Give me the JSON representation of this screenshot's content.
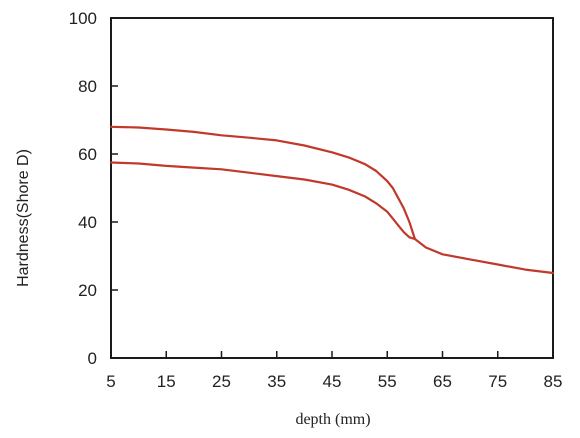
{
  "chart_data": {
    "type": "line",
    "title": "",
    "xlabel": "depth (mm)",
    "ylabel": "Hardness(Shore D)",
    "xlim": [
      5,
      85
    ],
    "ylim": [
      0,
      100
    ],
    "xticks": [
      5,
      15,
      25,
      35,
      45,
      55,
      65,
      75,
      85
    ],
    "yticks": [
      0,
      20,
      40,
      60,
      80,
      100
    ],
    "grid": false,
    "legend": "none",
    "series_color": "#c0392b",
    "series": [
      {
        "x": [
          5,
          10,
          15,
          20,
          25,
          30,
          35,
          40,
          45,
          48,
          51,
          53,
          55,
          56,
          57,
          58,
          59,
          60,
          62,
          65,
          70,
          75,
          80,
          85
        ],
        "y": [
          68,
          67.8,
          67.2,
          66.5,
          65.5,
          64.8,
          64,
          62.5,
          60.5,
          59,
          57,
          55,
          52,
          50,
          47,
          44,
          40,
          35,
          32.5,
          30.5,
          29,
          27.5,
          26,
          25
        ]
      },
      {
        "x": [
          5,
          10,
          15,
          20,
          25,
          30,
          35,
          40,
          45,
          48,
          51,
          53,
          55,
          56,
          57,
          58,
          59,
          60
        ],
        "y": [
          57.5,
          57.2,
          56.5,
          56,
          55.5,
          54.5,
          53.5,
          52.5,
          51,
          49.5,
          47.5,
          45.5,
          43,
          41,
          39,
          37,
          35.5,
          35
        ]
      }
    ]
  }
}
